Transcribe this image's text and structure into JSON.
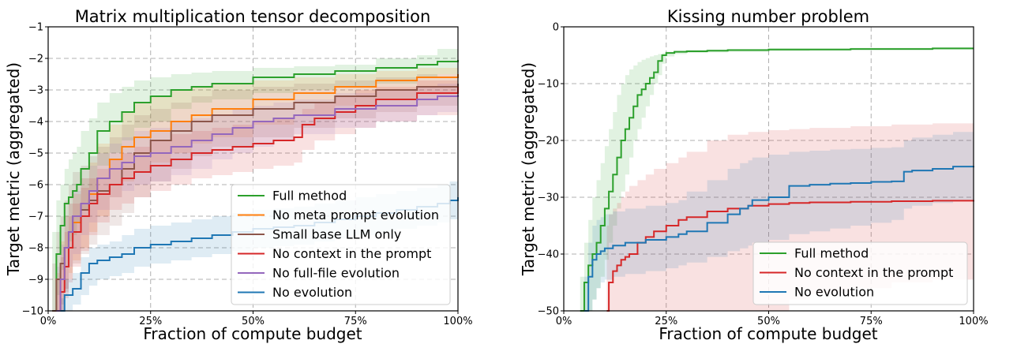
{
  "chart_data": [
    {
      "type": "line",
      "title": "Matrix multiplication tensor decomposition",
      "xlabel": "Fraction of compute budget",
      "ylabel": "Target metric (aggregated)",
      "xlim": [
        0,
        100
      ],
      "ylim": [
        -10,
        -1
      ],
      "x_ticks": [
        0,
        25,
        50,
        75,
        100
      ],
      "x_tick_labels": [
        "0%",
        "25%",
        "50%",
        "75%",
        "100%"
      ],
      "y_ticks": [
        -10,
        -9,
        -8,
        -7,
        -6,
        -5,
        -4,
        -3,
        -2,
        -1
      ],
      "y_tick_labels": [
        "−10",
        "−9",
        "−8",
        "−7",
        "−6",
        "−5",
        "−4",
        "−3",
        "−2",
        "−1"
      ],
      "grid": true,
      "legend_position": "lower-right",
      "series": [
        {
          "name": "Full method",
          "color": "#2ca02c",
          "x": [
            1,
            2,
            3,
            4,
            5,
            6,
            7,
            8,
            10,
            12,
            15,
            18,
            21,
            25,
            30,
            35,
            40,
            50,
            60,
            70,
            80,
            90,
            95,
            100
          ],
          "y": [
            -10,
            -8.2,
            -7.3,
            -6.6,
            -6.4,
            -6.2,
            -6.0,
            -5.5,
            -5.0,
            -4.3,
            -4.0,
            -3.7,
            -3.4,
            -3.2,
            -3.0,
            -2.9,
            -2.8,
            -2.6,
            -2.5,
            -2.4,
            -2.3,
            -2.2,
            -2.1,
            -2.05
          ],
          "band_upper": [
            -7.5,
            -6.5,
            -6.0,
            -5.5,
            -5.2,
            -5.0,
            -4.8,
            -4.3,
            -3.9,
            -3.4,
            -3.1,
            -2.9,
            -2.7,
            -2.6,
            -2.5,
            -2.45,
            -2.4,
            -2.3,
            -2.25,
            -2.2,
            -2.0,
            -1.9,
            -1.7,
            -1.6
          ],
          "band_lower": [
            -10,
            -9.5,
            -8.7,
            -8.0,
            -7.8,
            -7.6,
            -7.2,
            -6.8,
            -6.2,
            -5.4,
            -5.0,
            -4.6,
            -4.2,
            -4.0,
            -3.6,
            -3.4,
            -3.3,
            -3.1,
            -3.0,
            -2.9,
            -2.8,
            -2.6,
            -2.5,
            -2.4
          ]
        },
        {
          "name": "No meta prompt evolution",
          "color": "#ff7f0e",
          "x": [
            2,
            3,
            4,
            5,
            6,
            8,
            10,
            12,
            15,
            18,
            21,
            25,
            30,
            35,
            40,
            50,
            60,
            70,
            80,
            90,
            100
          ],
          "y": [
            -10,
            -9.0,
            -8.0,
            -7.5,
            -7.2,
            -6.8,
            -6.3,
            -5.8,
            -5.2,
            -4.8,
            -4.5,
            -4.3,
            -4.0,
            -3.8,
            -3.6,
            -3.3,
            -3.1,
            -2.9,
            -2.7,
            -2.6,
            -2.5
          ],
          "band_upper": [
            -8.8,
            -7.8,
            -7.0,
            -6.6,
            -6.3,
            -5.8,
            -5.3,
            -4.7,
            -4.1,
            -3.7,
            -3.4,
            -3.2,
            -3.0,
            -2.9,
            -2.8,
            -2.7,
            -2.6,
            -2.5,
            -2.4,
            -2.3,
            -2.2
          ],
          "band_lower": [
            -10,
            -10,
            -9.3,
            -8.8,
            -8.4,
            -8.0,
            -7.5,
            -7.0,
            -6.4,
            -5.9,
            -5.6,
            -5.3,
            -5.0,
            -4.7,
            -4.5,
            -4.1,
            -3.8,
            -3.5,
            -3.3,
            -3.1,
            -3.0
          ]
        },
        {
          "name": "Small base LLM only",
          "color": "#8c564b",
          "x": [
            1,
            2,
            3,
            4,
            5,
            6,
            8,
            10,
            12,
            15,
            18,
            21,
            25,
            30,
            35,
            40,
            50,
            60,
            70,
            80,
            90,
            100
          ],
          "y": [
            -10,
            -9.0,
            -8.5,
            -8.0,
            -7.5,
            -7.0,
            -6.8,
            -6.5,
            -6.2,
            -6.0,
            -5.5,
            -5.0,
            -4.6,
            -4.3,
            -4.0,
            -3.8,
            -3.6,
            -3.4,
            -3.2,
            -3.0,
            -2.9,
            -2.8
          ],
          "band_upper": [
            -8.5,
            -7.5,
            -7.0,
            -6.5,
            -6.0,
            -5.6,
            -5.4,
            -5.1,
            -4.8,
            -4.5,
            -4.1,
            -3.8,
            -3.6,
            -3.4,
            -3.2,
            -3.0,
            -2.9,
            -2.8,
            -2.7,
            -2.6,
            -2.5,
            -2.4
          ],
          "band_lower": [
            -10,
            -10,
            -9.8,
            -9.4,
            -9.0,
            -8.5,
            -8.2,
            -7.9,
            -7.6,
            -7.3,
            -6.9,
            -6.4,
            -5.9,
            -5.5,
            -5.1,
            -4.8,
            -4.5,
            -4.2,
            -3.9,
            -3.7,
            -3.5,
            -3.4
          ]
        },
        {
          "name": "No context in the prompt",
          "color": "#d62728",
          "x": [
            2,
            3,
            4,
            5,
            6,
            8,
            10,
            12,
            15,
            18,
            21,
            25,
            30,
            35,
            40,
            45,
            50,
            55,
            60,
            62,
            65,
            70,
            75,
            80,
            90,
            100
          ],
          "y": [
            -10,
            -9.4,
            -8.6,
            -8.0,
            -7.5,
            -7.0,
            -6.6,
            -6.3,
            -6.0,
            -5.8,
            -5.6,
            -5.4,
            -5.2,
            -5.0,
            -4.9,
            -4.8,
            -4.7,
            -4.6,
            -4.5,
            -4.1,
            -3.9,
            -3.7,
            -3.5,
            -3.3,
            -3.1,
            -2.9
          ],
          "band_upper": [
            -9.0,
            -8.3,
            -7.5,
            -7.0,
            -6.6,
            -6.1,
            -5.8,
            -5.5,
            -5.2,
            -5.0,
            -4.8,
            -4.6,
            -4.4,
            -4.3,
            -4.2,
            -4.1,
            -4.0,
            -3.9,
            -3.8,
            -3.6,
            -3.4,
            -3.2,
            -3.0,
            -2.9,
            -2.7,
            -2.5
          ],
          "band_lower": [
            -10,
            -10,
            -9.6,
            -9.1,
            -8.6,
            -8.1,
            -7.6,
            -7.2,
            -6.8,
            -6.6,
            -6.4,
            -6.2,
            -6.0,
            -5.8,
            -5.7,
            -5.6,
            -5.5,
            -5.4,
            -5.3,
            -4.9,
            -4.6,
            -4.4,
            -4.2,
            -4.0,
            -3.8,
            -3.6
          ]
        },
        {
          "name": "No full-file evolution",
          "color": "#9467bd",
          "x": [
            2,
            3,
            4,
            5,
            6,
            8,
            10,
            12,
            15,
            18,
            21,
            25,
            30,
            35,
            40,
            45,
            50,
            55,
            60,
            70,
            80,
            90,
            95,
            100
          ],
          "y": [
            -10,
            -9.0,
            -8.0,
            -7.5,
            -7.0,
            -6.6,
            -6.2,
            -5.8,
            -5.5,
            -5.3,
            -5.1,
            -5.0,
            -4.8,
            -4.6,
            -4.4,
            -4.2,
            -4.0,
            -3.9,
            -3.8,
            -3.6,
            -3.5,
            -3.3,
            -3.2,
            -3.15
          ],
          "band_upper": [
            -8.6,
            -7.9,
            -7.0,
            -6.6,
            -6.2,
            -5.8,
            -5.4,
            -5.0,
            -4.7,
            -4.5,
            -4.3,
            -4.2,
            -4.0,
            -3.9,
            -3.8,
            -3.6,
            -3.5,
            -3.4,
            -3.3,
            -3.1,
            -3.0,
            -2.9,
            -2.8,
            -2.7
          ],
          "band_lower": [
            -10,
            -10,
            -9.3,
            -8.6,
            -8.2,
            -7.6,
            -7.2,
            -6.8,
            -6.4,
            -6.2,
            -6.0,
            -5.9,
            -5.7,
            -5.5,
            -5.2,
            -5.0,
            -4.8,
            -4.6,
            -4.4,
            -4.2,
            -4.0,
            -3.8,
            -3.7,
            -3.6
          ]
        },
        {
          "name": "No evolution",
          "color": "#1f77b4",
          "x": [
            3,
            4,
            6,
            8,
            10,
            12,
            15,
            18,
            21,
            25,
            30,
            35,
            40,
            45,
            50,
            55,
            60,
            65,
            70,
            75,
            80,
            85,
            90,
            95,
            98,
            100
          ],
          "y": [
            -10,
            -9.5,
            -9.3,
            -8.8,
            -8.5,
            -8.4,
            -8.3,
            -8.2,
            -8.0,
            -7.9,
            -7.8,
            -7.7,
            -7.6,
            -7.5,
            -7.4,
            -7.35,
            -7.3,
            -7.2,
            -7.1,
            -7.0,
            -6.9,
            -6.8,
            -6.7,
            -6.6,
            -6.5,
            -6.4
          ],
          "band_upper": [
            -9.6,
            -9.0,
            -8.8,
            -8.3,
            -8.0,
            -7.9,
            -7.8,
            -7.6,
            -7.4,
            -7.3,
            -7.2,
            -7.1,
            -7.0,
            -6.9,
            -6.8,
            -6.75,
            -6.7,
            -6.6,
            -6.5,
            -6.4,
            -6.3,
            -6.2,
            -6.1,
            -6.0,
            -5.9,
            -5.8
          ],
          "band_lower": [
            -10,
            -10,
            -9.8,
            -9.5,
            -9.2,
            -9.0,
            -8.9,
            -8.8,
            -8.6,
            -8.5,
            -8.4,
            -8.3,
            -8.2,
            -8.1,
            -8.0,
            -7.95,
            -7.9,
            -7.8,
            -7.7,
            -7.6,
            -7.5,
            -7.4,
            -7.3,
            -7.2,
            -7.1,
            -7.0
          ]
        }
      ]
    },
    {
      "type": "line",
      "title": "Kissing number problem",
      "xlabel": "Fraction of compute budget",
      "ylabel": "Target metric (aggregated)",
      "xlim": [
        0,
        100
      ],
      "ylim": [
        -50,
        0
      ],
      "x_ticks": [
        0,
        25,
        50,
        75,
        100
      ],
      "x_tick_labels": [
        "0%",
        "25%",
        "50%",
        "75%",
        "100%"
      ],
      "y_ticks": [
        -50,
        -40,
        -30,
        -20,
        -10,
        0
      ],
      "y_tick_labels": [
        "−50",
        "−40",
        "−30",
        "−20",
        "−10",
        "0"
      ],
      "grid": true,
      "legend_position": "lower-right",
      "series": [
        {
          "name": "Full method",
          "color": "#2ca02c",
          "x": [
            4,
            5,
            6,
            7,
            8,
            9,
            10,
            11,
            12,
            13,
            14,
            15,
            16,
            17,
            18,
            19,
            20,
            21,
            22,
            23,
            24,
            25,
            27,
            30,
            35,
            40,
            50,
            60,
            70,
            80,
            90,
            100
          ],
          "y": [
            -50,
            -45,
            -42,
            -40,
            -38,
            -35,
            -32,
            -29,
            -26,
            -23,
            -20,
            -18,
            -16,
            -14,
            -12,
            -11,
            -10,
            -9,
            -8,
            -6,
            -5,
            -4.6,
            -4.4,
            -4.3,
            -4.2,
            -4.1,
            -4.0,
            -4.0,
            -3.9,
            -3.9,
            -3.8,
            -3.8
          ],
          "band_upper": [
            -44,
            -38,
            -34,
            -30,
            -27,
            -24,
            -21,
            -18,
            -15,
            -12,
            -10,
            -8.5,
            -7.5,
            -6.8,
            -6.2,
            -5.8,
            -5.5,
            -5.2,
            -5.0,
            -4.8,
            -4.6,
            -4.4,
            -4.2,
            -4.1,
            -4.0,
            -3.9,
            -3.8,
            -3.8,
            -3.7,
            -3.7,
            -3.6,
            -3.6
          ],
          "band_lower": [
            -50,
            -50,
            -50,
            -48,
            -46,
            -44,
            -41,
            -38,
            -35,
            -32,
            -29,
            -26,
            -23,
            -20,
            -18,
            -16,
            -14,
            -12,
            -10,
            -8.5,
            -6.5,
            -5.2,
            -4.8,
            -4.6,
            -4.5,
            -4.4,
            -4.3,
            -4.2,
            -4.1,
            -4.1,
            -4.0,
            -4.0
          ]
        },
        {
          "name": "No context in the prompt",
          "color": "#d62728",
          "x": [
            10.5,
            11,
            12,
            13,
            14,
            15,
            16,
            18,
            20,
            22,
            25,
            28,
            30,
            35,
            40,
            45,
            50,
            55,
            60,
            70,
            80,
            90,
            100
          ],
          "y": [
            -50,
            -45,
            -43,
            -42,
            -41,
            -40.5,
            -40,
            -38,
            -37,
            -36,
            -35,
            -34,
            -33.5,
            -32.5,
            -32,
            -31.5,
            -31.2,
            -31.0,
            -30.9,
            -30.8,
            -30.7,
            -30.6,
            -30.5
          ],
          "band_upper": [
            -35,
            -33,
            -32,
            -31,
            -30,
            -29,
            -28,
            -27,
            -26,
            -25,
            -24,
            -23,
            -22,
            -20,
            -19,
            -18.5,
            -18.2,
            -18.0,
            -17.8,
            -17.5,
            -17.2,
            -17.0,
            -16.8
          ],
          "band_lower": [
            -50,
            -50,
            -50,
            -50,
            -50,
            -50,
            -50,
            -50,
            -50,
            -50,
            -50,
            -50,
            -50,
            -50,
            -50,
            -50,
            -50,
            -48,
            -47,
            -46,
            -45,
            -44.5,
            -44
          ]
        },
        {
          "name": "No evolution",
          "color": "#1f77b4",
          "x": [
            5,
            6,
            7,
            8,
            9,
            10,
            12,
            15,
            20,
            25,
            28,
            30,
            35,
            40,
            43,
            45,
            46,
            50,
            55,
            60,
            65,
            70,
            75,
            80,
            83,
            85,
            90,
            95,
            100
          ],
          "y": [
            -50,
            -44,
            -41,
            -40,
            -39.5,
            -39,
            -38.5,
            -38,
            -37.5,
            -37,
            -36.5,
            -36,
            -34.5,
            -33,
            -32,
            -31.5,
            -30.5,
            -30,
            -28,
            -27.8,
            -27.6,
            -27.5,
            -27.3,
            -27.2,
            -25.5,
            -25.3,
            -25.0,
            -24.6,
            -24.5
          ],
          "band_upper": [
            -44,
            -38,
            -35,
            -34,
            -33.5,
            -33,
            -32.5,
            -32,
            -31.5,
            -31,
            -30.5,
            -29,
            -27,
            -25,
            -24,
            -23.5,
            -23,
            -22.5,
            -22,
            -21.8,
            -21.6,
            -21.5,
            -21.3,
            -21.2,
            -20,
            -19.5,
            -19,
            -18.5,
            -18
          ],
          "band_lower": [
            -50,
            -50,
            -48,
            -46,
            -45,
            -44.5,
            -44,
            -43.5,
            -43,
            -42.5,
            -42,
            -41.5,
            -40.5,
            -39.5,
            -39,
            -38.5,
            -38,
            -37.5,
            -36.5,
            -36,
            -35.5,
            -35,
            -34.5,
            -34,
            -32,
            -31.5,
            -31,
            -30.5,
            -30
          ]
        }
      ]
    }
  ]
}
